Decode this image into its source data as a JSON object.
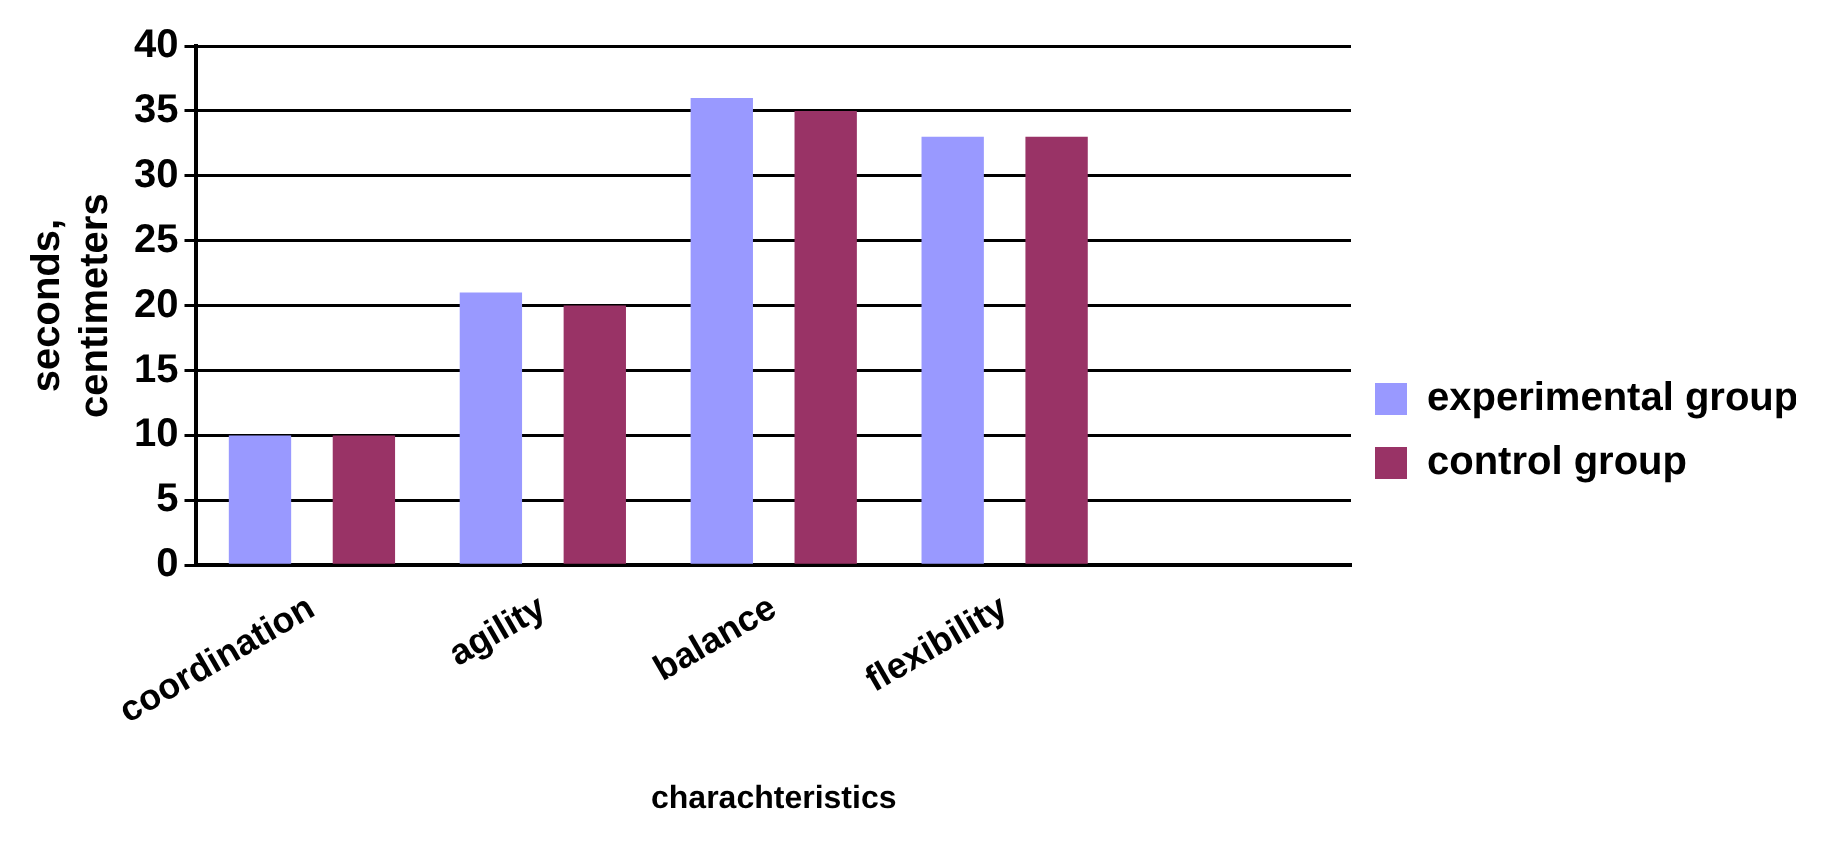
{
  "chart_data": {
    "type": "bar",
    "xlabel": "charachteristics",
    "ylabel": "seconds,\ncentimeters",
    "categories": [
      "coordination",
      "agility",
      "balance",
      "flexibility",
      null
    ],
    "series": [
      {
        "name": "experimental group",
        "color": "#9999ff",
        "values": [
          10,
          21,
          36,
          33,
          null
        ]
      },
      {
        "name": "control group",
        "color": "#993366",
        "values": [
          10,
          20,
          35,
          33,
          null
        ]
      }
    ],
    "ylim": [
      0,
      40
    ],
    "yticks": [
      0,
      5,
      10,
      15,
      20,
      25,
      30,
      35,
      40
    ],
    "grid": "y",
    "legend": "right"
  }
}
